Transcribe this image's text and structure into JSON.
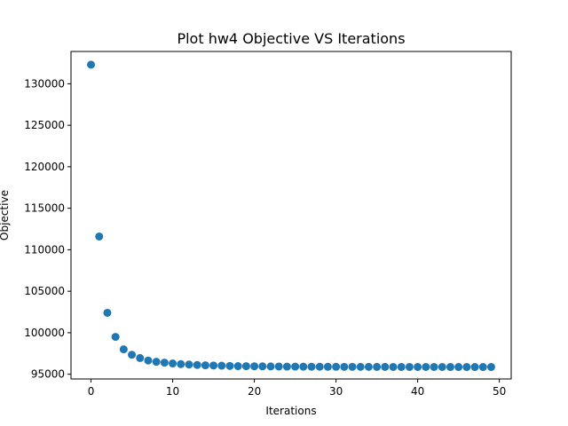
{
  "chart_data": {
    "type": "scatter",
    "title": "Plot hw4 Objective VS Iterations",
    "xlabel": "Iterations",
    "ylabel": "Objective",
    "xlim": [
      -2.45,
      51.45
    ],
    "ylim": [
      94430,
      133890
    ],
    "xticks": [
      0,
      10,
      20,
      30,
      40,
      50
    ],
    "yticks": [
      95000,
      100000,
      105000,
      110000,
      115000,
      120000,
      125000,
      130000
    ],
    "grid": false,
    "marker_color": "#1f77b4",
    "x": [
      0,
      1,
      2,
      3,
      4,
      5,
      6,
      7,
      8,
      9,
      10,
      11,
      12,
      13,
      14,
      15,
      16,
      17,
      18,
      19,
      20,
      21,
      22,
      23,
      24,
      25,
      26,
      27,
      28,
      29,
      30,
      31,
      32,
      33,
      34,
      35,
      36,
      37,
      38,
      39,
      40,
      41,
      42,
      43,
      44,
      45,
      46,
      47,
      48,
      49
    ],
    "y": [
      132300,
      111600,
      102400,
      99500,
      98000,
      97350,
      96950,
      96650,
      96500,
      96400,
      96300,
      96220,
      96170,
      96120,
      96080,
      96050,
      96030,
      96000,
      95980,
      95970,
      95960,
      95950,
      95940,
      95930,
      95920,
      95915,
      95910,
      95905,
      95900,
      95898,
      95895,
      95892,
      95890,
      95888,
      95886,
      95884,
      95882,
      95880,
      95879,
      95878,
      95877,
      95876,
      95875,
      95874,
      95873,
      95872,
      95871,
      95870,
      95869,
      95868
    ]
  }
}
